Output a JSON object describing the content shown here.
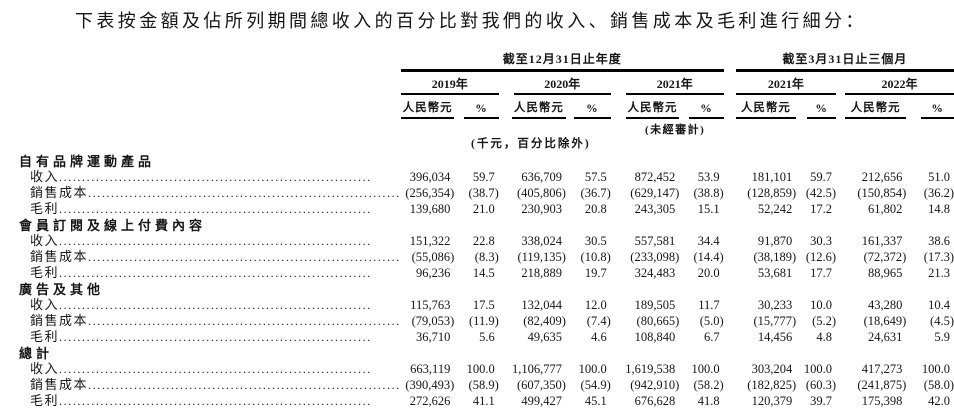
{
  "page": {
    "title": "下表按金額及佔所列期間總收入的百分比對我們的收入、銷售成本及毛利進行細分："
  },
  "table": {
    "period_groups": [
      {
        "label": "截至12月31日止年度"
      },
      {
        "label": "截至3月31日止三個月"
      }
    ],
    "year_headers": [
      "2019年",
      "2020年",
      "2021年",
      "2021年",
      "2022年"
    ],
    "unit_currency": "人民幣元",
    "unit_percent": "%",
    "note_unaudited": "(未經審計)",
    "note_unit": "(千元，百分比除外)",
    "sections": [
      {
        "name": "自有品牌運動產品",
        "rows": [
          {
            "label": "收入",
            "values": [
              "396,034",
              "59.7",
              "636,709",
              "57.5",
              "872,452",
              "53.9",
              "181,101",
              "59.7",
              "212,656",
              "51.0"
            ]
          },
          {
            "label": "銷售成本",
            "values": [
              "(256,354)",
              "(38.7)",
              "(405,806)",
              "(36.7)",
              "(629,147)",
              "(38.8)",
              "(128,859)",
              "(42.5)",
              "(150,854)",
              "(36.2)"
            ]
          },
          {
            "label": "毛利",
            "values": [
              "139,680",
              "21.0",
              "230,903",
              "20.8",
              "243,305",
              "15.1",
              "52,242",
              "17.2",
              "61,802",
              "14.8"
            ]
          }
        ]
      },
      {
        "name": "會員訂閱及線上付費內容",
        "rows": [
          {
            "label": "收入",
            "values": [
              "151,322",
              "22.8",
              "338,024",
              "30.5",
              "557,581",
              "34.4",
              "91,870",
              "30.3",
              "161,337",
              "38.6"
            ]
          },
          {
            "label": "銷售成本",
            "values": [
              "(55,086)",
              "(8.3)",
              "(119,135)",
              "(10.8)",
              "(233,098)",
              "(14.4)",
              "(38,189)",
              "(12.6)",
              "(72,372)",
              "(17.3)"
            ]
          },
          {
            "label": "毛利",
            "values": [
              "96,236",
              "14.5",
              "218,889",
              "19.7",
              "324,483",
              "20.0",
              "53,681",
              "17.7",
              "88,965",
              "21.3"
            ]
          }
        ]
      },
      {
        "name": "廣告及其他",
        "rows": [
          {
            "label": "收入",
            "values": [
              "115,763",
              "17.5",
              "132,044",
              "12.0",
              "189,505",
              "11.7",
              "30,233",
              "10.0",
              "43,280",
              "10.4"
            ]
          },
          {
            "label": "銷售成本",
            "values": [
              "(79,053)",
              "(11.9)",
              "(82,409)",
              "(7.4)",
              "(80,665)",
              "(5.0)",
              "(15,777)",
              "(5.2)",
              "(18,649)",
              "(4.5)"
            ]
          },
          {
            "label": "毛利",
            "values": [
              "36,710",
              "5.6",
              "49,635",
              "4.6",
              "108,840",
              "6.7",
              "14,456",
              "4.8",
              "24,631",
              "5.9"
            ]
          }
        ]
      },
      {
        "name": "總計",
        "rows": [
          {
            "label": "收入",
            "values": [
              "663,119",
              "100.0",
              "1,106,777",
              "100.0",
              "1,619,538",
              "100.0",
              "303,204",
              "100.0",
              "417,273",
              "100.0"
            ]
          },
          {
            "label": "銷售成本",
            "values": [
              "(390,493)",
              "(58.9)",
              "(607,350)",
              "(54.9)",
              "(942,910)",
              "(58.2)",
              "(182,825)",
              "(60.3)",
              "(241,875)",
              "(58.0)"
            ]
          },
          {
            "label": "毛利",
            "values": [
              "272,626",
              "41.1",
              "499,427",
              "45.1",
              "676,628",
              "41.8",
              "120,379",
              "39.7",
              "175,398",
              "42.0"
            ]
          }
        ]
      }
    ]
  }
}
